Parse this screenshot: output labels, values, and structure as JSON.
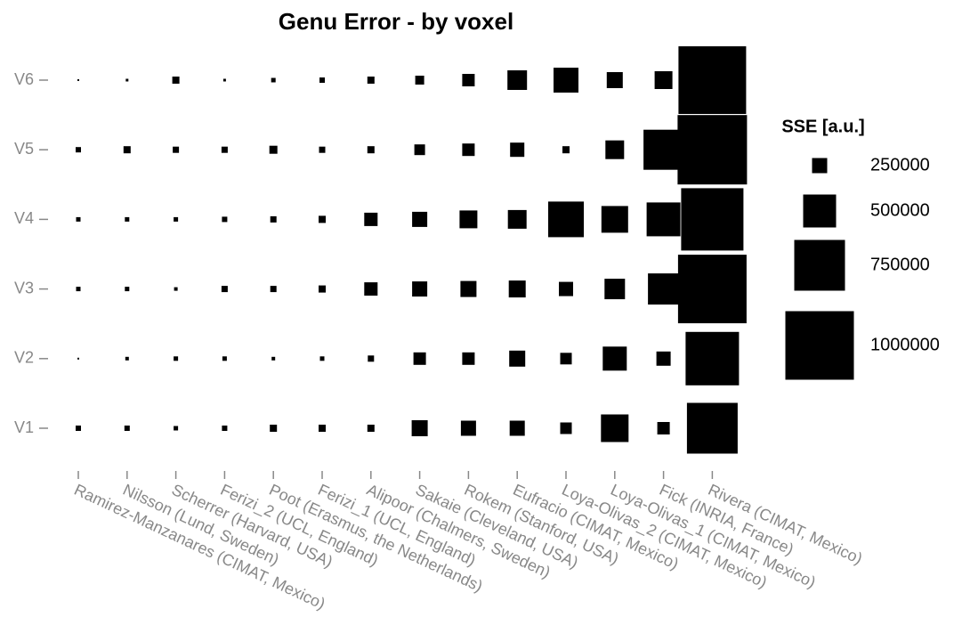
{
  "chart_data": {
    "type": "balloon",
    "title": "Genu Error - by voxel",
    "categories": [
      "Ramirez-Manzanares (CIMAT, Mexico)",
      "Nilsson (Lund, Sweden)",
      "Scherrer (Harvard, USA)",
      "Ferizi_2 (UCL, England)",
      "Poot (Erasmus, the Netherlands)",
      "Ferizi_1 (UCL, England)",
      "Alipoor (Chalmers, Sweden)",
      "Sakaie (Cleveland, USA)",
      "Rokem (Stanford, USA)",
      "Eufracio (CIMAT, Mexico)",
      "Loya-Olivas_2 (CIMAT, Mexico)",
      "Loya-Olivas_1 (CIMAT, Mexico)",
      "Fick (INRIA, France)",
      "Rivera (CIMAT, Mexico)"
    ],
    "color": "#000000",
    "series": [
      {
        "name": "V1",
        "values": [
          112500,
          112500,
          100000,
          112500,
          137500,
          137500,
          137500,
          262500,
          250000,
          250000,
          200000,
          425000,
          212500,
          750000
        ]
      },
      {
        "name": "V2",
        "values": [
          62500,
          87500,
          100000,
          100000,
          87500,
          100000,
          125000,
          212500,
          212500,
          262500,
          200000,
          375000,
          237500,
          787500
        ]
      },
      {
        "name": "V3",
        "values": [
          100000,
          100000,
          87500,
          125000,
          125000,
          137500,
          225000,
          250000,
          262500,
          275000,
          237500,
          325000,
          475000,
          1000000
        ]
      },
      {
        "name": "V4",
        "values": [
          100000,
          100000,
          100000,
          112500,
          125000,
          137500,
          225000,
          250000,
          287500,
          300000,
          537500,
          412500,
          512500,
          912500
        ]
      },
      {
        "name": "V5",
        "values": [
          112500,
          137500,
          125000,
          125000,
          150000,
          125000,
          137500,
          187500,
          212500,
          237500,
          137500,
          300000,
          600000,
          1012500
        ]
      },
      {
        "name": "V6",
        "values": [
          62500,
          75000,
          137500,
          75000,
          100000,
          112500,
          137500,
          162500,
          212500,
          312500,
          387500,
          262500,
          287500,
          987500
        ]
      }
    ],
    "legend_title": "SSE [a.u.]",
    "legend_sizes": [
      250000,
      500000,
      750000,
      1000000
    ]
  }
}
